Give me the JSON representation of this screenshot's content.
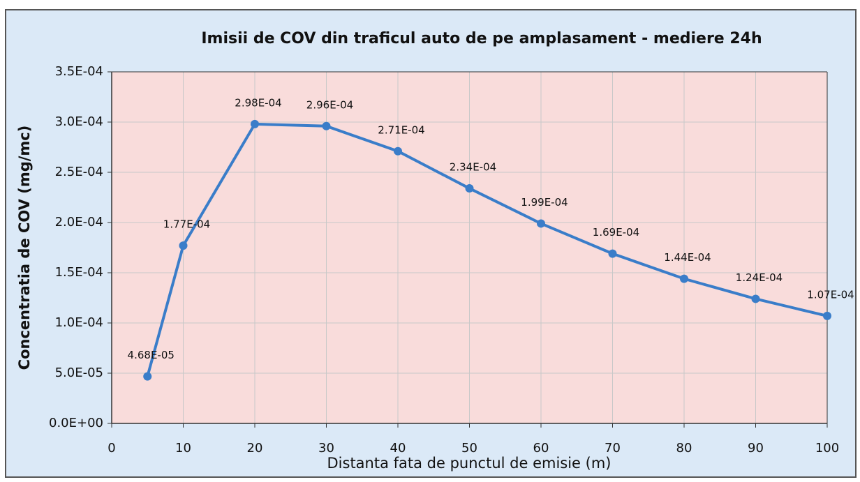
{
  "chart_data": {
    "type": "line",
    "title": "Imisii de COV din traficul auto de pe amplasament - mediere 24h",
    "x_label": "Distanta fata de punctul de emisie (m)",
    "y_label": "Concentratia de COV (mg/mc)",
    "x": [
      5,
      10,
      20,
      30,
      40,
      50,
      60,
      70,
      80,
      90,
      100
    ],
    "series": [
      {
        "name": "COV",
        "color": "#3a7dc9",
        "values": [
          4.68e-05,
          0.000177,
          0.000298,
          0.000296,
          0.000271,
          0.000234,
          0.000199,
          0.000169,
          0.000144,
          0.000124,
          0.000107
        ],
        "value_labels": [
          "4.68E-05",
          "1.77E-04",
          "2.98E-04",
          "2.96E-04",
          "2.71E-04",
          "2.34E-04",
          "1.99E-04",
          "1.69E-04",
          "1.44E-04",
          "1.24E-04",
          "1.07E-04"
        ]
      }
    ],
    "xlim": [
      0,
      100
    ],
    "xticks": [
      0,
      10,
      20,
      30,
      40,
      50,
      60,
      70,
      80,
      90,
      100
    ],
    "ylim": [
      0,
      0.00035
    ],
    "yticks": [
      {
        "value": 0,
        "label": "0.0E+00"
      },
      {
        "value": 5e-05,
        "label": "5.0E-05"
      },
      {
        "value": 0.0001,
        "label": "1.0E-04"
      },
      {
        "value": 0.00015,
        "label": "1.5E-04"
      },
      {
        "value": 0.0002,
        "label": "2.0E-04"
      },
      {
        "value": 0.00025,
        "label": "2.5E-04"
      },
      {
        "value": 0.0003,
        "label": "3.0E-04"
      },
      {
        "value": 0.00035,
        "label": "3.5E-04"
      }
    ],
    "grid": true
  }
}
